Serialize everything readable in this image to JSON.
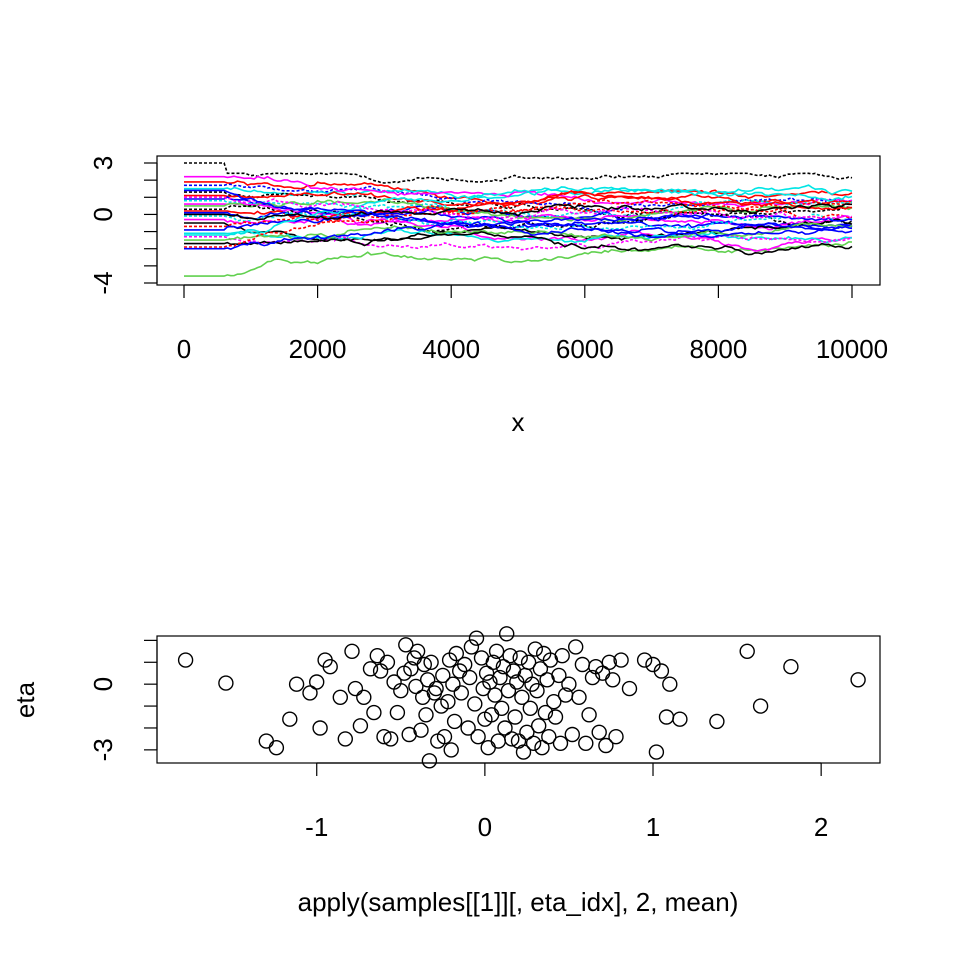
{
  "chart_data": [
    {
      "type": "line",
      "xlabel": "x",
      "ylabel": "",
      "xlim": [
        0,
        10000
      ],
      "ylim": [
        -4,
        3
      ],
      "x_ticks": [
        0,
        2000,
        4000,
        6000,
        8000,
        10000
      ],
      "x_tick_labels": [
        "0",
        "2000",
        "4000",
        "6000",
        "8000",
        "10000"
      ],
      "y_ticks": [
        -4,
        -3,
        -2,
        -1,
        0,
        1,
        2,
        3
      ],
      "y_tick_labels": [
        "-4",
        "",
        "",
        "",
        "0",
        "",
        "",
        "3"
      ],
      "n_samples": 10000,
      "burn_in": 600,
      "grid": false,
      "palette": [
        "#000000",
        "#df536b",
        "#61d04f",
        "#2297e6",
        "#28e2e5",
        "#cd0bbc",
        "#f5c710",
        "#9e9e9e"
      ],
      "series": [
        {
          "color": "#000000",
          "start": 3.0,
          "mean": 2.1
        },
        {
          "color": "#61d04f",
          "start": -3.6,
          "mean": -1.6
        },
        {
          "color": "#ff0000",
          "start": 1.9,
          "mean": 1.2
        },
        {
          "color": "#0000ff",
          "start": 1.7,
          "mean": 0.9
        },
        {
          "color": "#00e5e5",
          "start": 1.5,
          "mean": 1.4
        },
        {
          "color": "#ff00ff",
          "start": 2.2,
          "mean": 0.6
        },
        {
          "color": "#000000",
          "start": 1.3,
          "mean": 0.3
        },
        {
          "color": "#ff0000",
          "start": 1.1,
          "mean": 0.8
        },
        {
          "color": "#0000ff",
          "start": 0.9,
          "mean": -0.2
        },
        {
          "color": "#00e5e5",
          "start": 0.8,
          "mean": 0.4
        },
        {
          "color": "#ff00ff",
          "start": 0.6,
          "mean": -0.6
        },
        {
          "color": "#61d04f",
          "start": 0.5,
          "mean": 0.1
        },
        {
          "color": "#000000",
          "start": 0.3,
          "mean": -0.4
        },
        {
          "color": "#ff0000",
          "start": 0.2,
          "mean": 0.5
        },
        {
          "color": "#0000ff",
          "start": 0.1,
          "mean": -0.9
        },
        {
          "color": "#00e5e5",
          "start": -0.1,
          "mean": 0.0
        },
        {
          "color": "#ff00ff",
          "start": -0.3,
          "mean": -1.2
        },
        {
          "color": "#000000",
          "start": -0.5,
          "mean": -0.7
        },
        {
          "color": "#ff0000",
          "start": -0.7,
          "mean": -0.3
        },
        {
          "color": "#0000ff",
          "start": -0.9,
          "mean": 0.2
        },
        {
          "color": "#00e5e5",
          "start": -1.1,
          "mean": -1.0
        },
        {
          "color": "#ff00ff",
          "start": -1.3,
          "mean": -1.6
        },
        {
          "color": "#61d04f",
          "start": -1.5,
          "mean": -0.8
        },
        {
          "color": "#000000",
          "start": -1.7,
          "mean": -1.4
        },
        {
          "color": "#ff0000",
          "start": -1.9,
          "mean": 0.7
        },
        {
          "color": "#0000ff",
          "start": -2.0,
          "mean": -0.5
        },
        {
          "color": "#00e5e5",
          "start": -1.2,
          "mean": 1.0
        },
        {
          "color": "#ff00ff",
          "start": 1.0,
          "mean": 0.0
        },
        {
          "color": "#000000",
          "start": 0.0,
          "mean": 0.6
        },
        {
          "color": "#0000ff",
          "start": 1.4,
          "mean": -1.1
        }
      ]
    },
    {
      "type": "scatter",
      "xlabel": "apply(samples[[1]][, eta_idx], 2, mean)",
      "ylabel": "eta",
      "xlim": [
        -1.95,
        2.35
      ],
      "ylim": [
        -3.6,
        2.2
      ],
      "x_ticks": [
        -1,
        0,
        1,
        2
      ],
      "x_tick_labels": [
        "-1",
        "0",
        "1",
        "2"
      ],
      "y_ticks": [
        -3,
        -2,
        -1,
        0,
        1,
        2
      ],
      "y_tick_labels": [
        "-3",
        "",
        "",
        "0",
        "",
        ""
      ],
      "grid": false,
      "marker": "open-circle",
      "points": [
        [
          -1.78,
          1.1
        ],
        [
          -1.54,
          0.05
        ],
        [
          -1.3,
          -2.6
        ],
        [
          -1.24,
          -2.9
        ],
        [
          -1.16,
          -1.6
        ],
        [
          -1.12,
          0.0
        ],
        [
          -1.04,
          -0.4
        ],
        [
          -1.0,
          0.1
        ],
        [
          -0.98,
          -2.0
        ],
        [
          -0.95,
          1.1
        ],
        [
          -0.92,
          0.8
        ],
        [
          -0.86,
          -0.6
        ],
        [
          -0.83,
          -2.5
        ],
        [
          -0.79,
          1.5
        ],
        [
          -0.77,
          -0.2
        ],
        [
          -0.74,
          -1.9
        ],
        [
          -0.72,
          -0.6
        ],
        [
          -0.68,
          0.7
        ],
        [
          -0.66,
          -1.3
        ],
        [
          -0.64,
          1.3
        ],
        [
          -0.62,
          0.6
        ],
        [
          -0.6,
          -2.4
        ],
        [
          -0.58,
          1.0
        ],
        [
          -0.56,
          -2.5
        ],
        [
          -0.54,
          0.1
        ],
        [
          -0.52,
          -1.3
        ],
        [
          -0.5,
          -0.3
        ],
        [
          -0.48,
          0.5
        ],
        [
          -0.47,
          1.8
        ],
        [
          -0.45,
          -2.3
        ],
        [
          -0.44,
          0.7
        ],
        [
          -0.42,
          1.2
        ],
        [
          -0.41,
          -0.1
        ],
        [
          -0.4,
          1.5
        ],
        [
          -0.38,
          -2.1
        ],
        [
          -0.37,
          -0.6
        ],
        [
          -0.36,
          0.9
        ],
        [
          -0.35,
          -1.4
        ],
        [
          -0.34,
          0.2
        ],
        [
          -0.33,
          -3.5
        ],
        [
          -0.32,
          1.0
        ],
        [
          -0.3,
          -0.4
        ],
        [
          -0.29,
          -0.2
        ],
        [
          -0.28,
          -2.6
        ],
        [
          -0.26,
          -1.0
        ],
        [
          -0.25,
          0.4
        ],
        [
          -0.24,
          -2.4
        ],
        [
          -0.22,
          -0.8
        ],
        [
          -0.21,
          1.1
        ],
        [
          -0.2,
          -3.0
        ],
        [
          -0.19,
          0.0
        ],
        [
          -0.18,
          -1.7
        ],
        [
          -0.17,
          1.4
        ],
        [
          -0.15,
          0.6
        ],
        [
          -0.14,
          -0.4
        ],
        [
          -0.12,
          0.9
        ],
        [
          -0.1,
          -2.0
        ],
        [
          -0.09,
          0.3
        ],
        [
          -0.08,
          1.7
        ],
        [
          -0.06,
          -0.9
        ],
        [
          -0.05,
          2.1
        ],
        [
          -0.04,
          -2.4
        ],
        [
          -0.02,
          1.2
        ],
        [
          -0.01,
          -0.2
        ],
        [
          0.0,
          -1.6
        ],
        [
          0.01,
          0.5
        ],
        [
          0.02,
          -2.9
        ],
        [
          0.03,
          0.1
        ],
        [
          0.04,
          -1.4
        ],
        [
          0.05,
          1.0
        ],
        [
          0.06,
          -0.5
        ],
        [
          0.07,
          1.5
        ],
        [
          0.08,
          -2.6
        ],
        [
          0.09,
          0.3
        ],
        [
          0.1,
          -1.1
        ],
        [
          0.11,
          0.8
        ],
        [
          0.12,
          -2.0
        ],
        [
          0.13,
          2.3
        ],
        [
          0.14,
          -0.3
        ],
        [
          0.15,
          1.3
        ],
        [
          0.16,
          -2.5
        ],
        [
          0.17,
          0.6
        ],
        [
          0.18,
          -1.5
        ],
        [
          0.19,
          0.1
        ],
        [
          0.2,
          -2.6
        ],
        [
          0.21,
          1.2
        ],
        [
          0.22,
          -0.6
        ],
        [
          0.23,
          -3.1
        ],
        [
          0.24,
          0.4
        ],
        [
          0.25,
          -2.2
        ],
        [
          0.26,
          1.0
        ],
        [
          0.27,
          -1.1
        ],
        [
          0.28,
          0.0
        ],
        [
          0.29,
          -2.7
        ],
        [
          0.3,
          1.6
        ],
        [
          0.31,
          -0.3
        ],
        [
          0.32,
          -1.9
        ],
        [
          0.33,
          0.7
        ],
        [
          0.34,
          -2.9
        ],
        [
          0.35,
          1.4
        ],
        [
          0.36,
          -1.3
        ],
        [
          0.37,
          0.2
        ],
        [
          0.38,
          -2.4
        ],
        [
          0.39,
          1.1
        ],
        [
          0.41,
          -0.8
        ],
        [
          0.42,
          -1.5
        ],
        [
          0.44,
          0.4
        ],
        [
          0.45,
          -2.7
        ],
        [
          0.46,
          1.3
        ],
        [
          0.48,
          -0.5
        ],
        [
          0.5,
          0.0
        ],
        [
          0.52,
          -2.3
        ],
        [
          0.54,
          1.7
        ],
        [
          0.56,
          -0.6
        ],
        [
          0.58,
          0.9
        ],
        [
          0.6,
          -2.7
        ],
        [
          0.62,
          -1.4
        ],
        [
          0.64,
          0.3
        ],
        [
          0.66,
          0.8
        ],
        [
          0.68,
          -2.2
        ],
        [
          0.7,
          0.5
        ],
        [
          0.72,
          -2.8
        ],
        [
          0.74,
          1.0
        ],
        [
          0.76,
          0.2
        ],
        [
          0.78,
          -2.4
        ],
        [
          0.81,
          1.1
        ],
        [
          0.86,
          -0.2
        ],
        [
          0.95,
          1.1
        ],
        [
          1.0,
          0.9
        ],
        [
          1.02,
          -3.1
        ],
        [
          1.05,
          0.6
        ],
        [
          1.08,
          -1.5
        ],
        [
          1.1,
          0.0
        ],
        [
          1.16,
          -1.6
        ],
        [
          1.38,
          -1.7
        ],
        [
          1.56,
          1.5
        ],
        [
          1.64,
          -1.0
        ],
        [
          1.82,
          0.8
        ],
        [
          2.22,
          0.2
        ]
      ]
    }
  ]
}
